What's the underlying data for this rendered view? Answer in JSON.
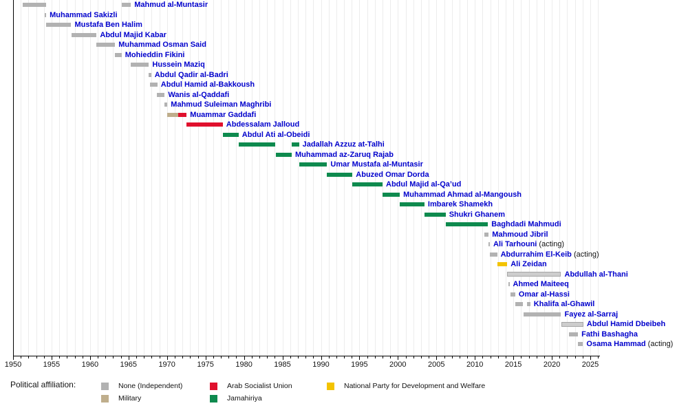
{
  "chart_data": {
    "type": "timeline",
    "x_axis": {
      "min": 1950,
      "max": 2026,
      "minor_tick_step_years": 1,
      "major_tick_step_years": 5,
      "tick_labels": [
        "1950",
        "1955",
        "1960",
        "1965",
        "1970",
        "1975",
        "1980",
        "1985",
        "1990",
        "1995",
        "2000",
        "2005",
        "2010",
        "2015",
        "2020",
        "2025"
      ]
    },
    "colors": {
      "none": "#b2b2b2",
      "none_light": "#cdcdcd",
      "military": "#bfae8c",
      "arab_socialist_union": "#e0102d",
      "jamahiriya": "#0e8a4e",
      "national_party_development_welfare": "#f3c300",
      "label_blue": "#0000cc",
      "gridline": "#ececec"
    },
    "legend": {
      "title": "Political affiliation:",
      "items": [
        {
          "label": "None (Independent)",
          "affiliation": "none",
          "col": 0,
          "row": 0
        },
        {
          "label": "Military",
          "affiliation": "military",
          "col": 0,
          "row": 1
        },
        {
          "label": "Arab Socialist Union",
          "affiliation": "arab_socialist_union",
          "col": 1,
          "row": 0
        },
        {
          "label": "Jamahiriya",
          "affiliation": "jamahiriya",
          "col": 1,
          "row": 1
        },
        {
          "label": "National Party for Development and Welfare",
          "affiliation": "national_party_development_welfare",
          "col": 2,
          "row": 0
        }
      ]
    },
    "people": [
      {
        "name": "Mahmud al-Muntasir",
        "terms": [
          {
            "start": 1951.25,
            "end": 1954.3,
            "affiliation": "none"
          },
          {
            "start": 1964.1,
            "end": 1965.3,
            "affiliation": "none"
          }
        ]
      },
      {
        "name": "Muhammad Sakizli",
        "terms": [
          {
            "start": 1954.15,
            "end": 1954.3,
            "affiliation": "none"
          }
        ]
      },
      {
        "name": "Mustafa Ben Halim",
        "terms": [
          {
            "start": 1954.3,
            "end": 1957.55,
            "affiliation": "none"
          }
        ]
      },
      {
        "name": "Abdul Majid Kabar",
        "terms": [
          {
            "start": 1957.55,
            "end": 1960.85,
            "affiliation": "none"
          }
        ]
      },
      {
        "name": "Muhammad Osman Said",
        "terms": [
          {
            "start": 1960.85,
            "end": 1963.25,
            "affiliation": "none"
          }
        ]
      },
      {
        "name": "Mohieddin Fikini",
        "terms": [
          {
            "start": 1963.25,
            "end": 1964.1,
            "affiliation": "none"
          }
        ]
      },
      {
        "name": "Hussein Maziq",
        "terms": [
          {
            "start": 1965.3,
            "end": 1967.65,
            "affiliation": "none"
          }
        ]
      },
      {
        "name": "Abdul Qadir al-Badri",
        "terms": [
          {
            "start": 1967.65,
            "end": 1967.95,
            "affiliation": "none"
          }
        ]
      },
      {
        "name": "Abdul Hamid al-Bakkoush",
        "terms": [
          {
            "start": 1967.8,
            "end": 1968.75,
            "affiliation": "none"
          }
        ]
      },
      {
        "name": "Wanis al-Qaddafi",
        "terms": [
          {
            "start": 1968.65,
            "end": 1969.7,
            "affiliation": "none"
          }
        ]
      },
      {
        "name": "Mahmud Suleiman Maghribi",
        "terms": [
          {
            "start": 1969.7,
            "end": 1970.05,
            "affiliation": "none"
          }
        ]
      },
      {
        "name": "Muammar Gaddafi",
        "terms": [
          {
            "start": 1970.05,
            "end": 1971.45,
            "affiliation": "military"
          },
          {
            "start": 1971.45,
            "end": 1972.55,
            "affiliation": "arab_socialist_union"
          }
        ]
      },
      {
        "name": "Abdessalam Jalloud",
        "terms": [
          {
            "start": 1972.55,
            "end": 1977.25,
            "affiliation": "arab_socialist_union"
          }
        ]
      },
      {
        "name": "Abdul Ati al-Obeidi",
        "terms": [
          {
            "start": 1977.25,
            "end": 1979.3,
            "affiliation": "jamahiriya"
          }
        ]
      },
      {
        "name": "Jadallah Azzuz at-Talhi",
        "terms": [
          {
            "start": 1979.3,
            "end": 1984.1,
            "affiliation": "jamahiriya"
          },
          {
            "start": 1986.2,
            "end": 1987.15,
            "affiliation": "jamahiriya"
          }
        ]
      },
      {
        "name": "Muhammad az-Zaruq Rajab",
        "terms": [
          {
            "start": 1984.1,
            "end": 1986.2,
            "affiliation": "jamahiriya"
          }
        ]
      },
      {
        "name": "Umar Mustafa al-Muntasir",
        "terms": [
          {
            "start": 1987.15,
            "end": 1990.8,
            "affiliation": "jamahiriya"
          }
        ]
      },
      {
        "name": "Abuzed Omar Dorda",
        "terms": [
          {
            "start": 1990.8,
            "end": 1994.1,
            "affiliation": "jamahiriya"
          }
        ]
      },
      {
        "name": "Abdul Majid al-Qa’ud",
        "terms": [
          {
            "start": 1994.1,
            "end": 1998.0,
            "affiliation": "jamahiriya"
          }
        ]
      },
      {
        "name": "Muhammad Ahmad al-Mangoush",
        "terms": [
          {
            "start": 1998.0,
            "end": 2000.25,
            "affiliation": "jamahiriya"
          }
        ]
      },
      {
        "name": "Imbarek Shamekh",
        "terms": [
          {
            "start": 2000.25,
            "end": 2003.45,
            "affiliation": "jamahiriya"
          }
        ]
      },
      {
        "name": "Shukri Ghanem",
        "terms": [
          {
            "start": 2003.45,
            "end": 2006.2,
            "affiliation": "jamahiriya"
          }
        ]
      },
      {
        "name": "Baghdadi Mahmudi",
        "terms": [
          {
            "start": 2006.2,
            "end": 2011.7,
            "affiliation": "jamahiriya"
          }
        ]
      },
      {
        "name": "Mahmoud Jibril",
        "terms": [
          {
            "start": 2011.2,
            "end": 2011.8,
            "affiliation": "none"
          }
        ]
      },
      {
        "name": "Ali Tarhouni",
        "suffix": "(acting)",
        "terms": [
          {
            "start": 2011.8,
            "end": 2011.95,
            "affiliation": "none"
          }
        ]
      },
      {
        "name": "Abdurrahim El-Keib",
        "suffix": "(acting)",
        "terms": [
          {
            "start": 2011.95,
            "end": 2012.9,
            "affiliation": "none"
          }
        ]
      },
      {
        "name": "Ali Zeidan",
        "terms": [
          {
            "start": 2012.9,
            "end": 2014.2,
            "affiliation": "national_party_development_welfare"
          }
        ]
      },
      {
        "name": "Abdullah al-Thani",
        "terms": [
          {
            "start": 2014.2,
            "end": 2021.2,
            "affiliation": "none",
            "light": true
          }
        ]
      },
      {
        "name": "Ahmed Maiteeq",
        "terms": [
          {
            "start": 2014.35,
            "end": 2014.5,
            "affiliation": "none"
          }
        ]
      },
      {
        "name": "Omar al-Hassi",
        "terms": [
          {
            "start": 2014.65,
            "end": 2015.25,
            "affiliation": "none"
          }
        ]
      },
      {
        "name": "Khalifa al-Ghawil",
        "terms": [
          {
            "start": 2015.25,
            "end": 2016.25,
            "affiliation": "none"
          },
          {
            "start": 2016.75,
            "end": 2017.2,
            "affiliation": "none"
          }
        ]
      },
      {
        "name": "Fayez al-Sarraj",
        "terms": [
          {
            "start": 2016.3,
            "end": 2021.2,
            "affiliation": "none"
          }
        ]
      },
      {
        "name": "Abdul Hamid Dbeibeh",
        "terms": [
          {
            "start": 2021.2,
            "end": 2024.1,
            "affiliation": "none",
            "light": true
          }
        ]
      },
      {
        "name": "Fathi Bashagha",
        "terms": [
          {
            "start": 2022.2,
            "end": 2023.4,
            "affiliation": "none"
          }
        ]
      },
      {
        "name": "Osama Hammad",
        "suffix": "(acting)",
        "terms": [
          {
            "start": 2023.4,
            "end": 2024.05,
            "affiliation": "none"
          }
        ]
      }
    ]
  }
}
